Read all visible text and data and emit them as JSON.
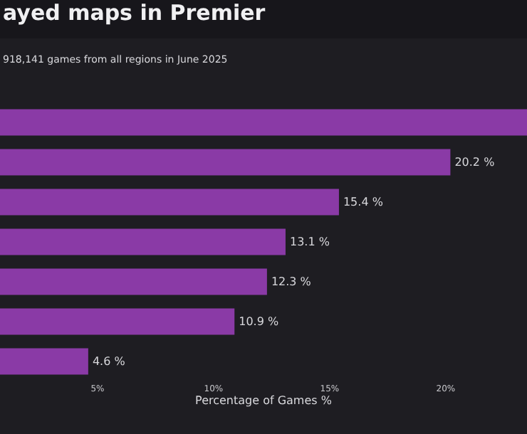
{
  "chart_data": {
    "type": "bar",
    "orientation": "horizontal",
    "title": "ayed maps in Premier",
    "subtitle": "918,141 games from all regions in June 2025",
    "xlabel": "Percentage of Games %",
    "categories": [
      null,
      null,
      null,
      null,
      null,
      null,
      null
    ],
    "values": [
      23.5,
      20.2,
      15.4,
      13.1,
      12.3,
      10.9,
      4.6
    ],
    "value_labels": [
      null,
      "20.2 %",
      "15.4 %",
      "13.1 %",
      "12.3 %",
      "10.9 %",
      "4.6 %"
    ],
    "color": "#8a3aa6",
    "xlim": [
      0.8,
      23.5
    ],
    "xticks": [
      {
        "value": 5,
        "label": "5%"
      },
      {
        "value": 10,
        "label": "10%"
      },
      {
        "value": 15,
        "label": "15%"
      },
      {
        "value": 20,
        "label": "20%"
      }
    ],
    "tick_labels": "x",
    "grid": false,
    "legend": false
  }
}
